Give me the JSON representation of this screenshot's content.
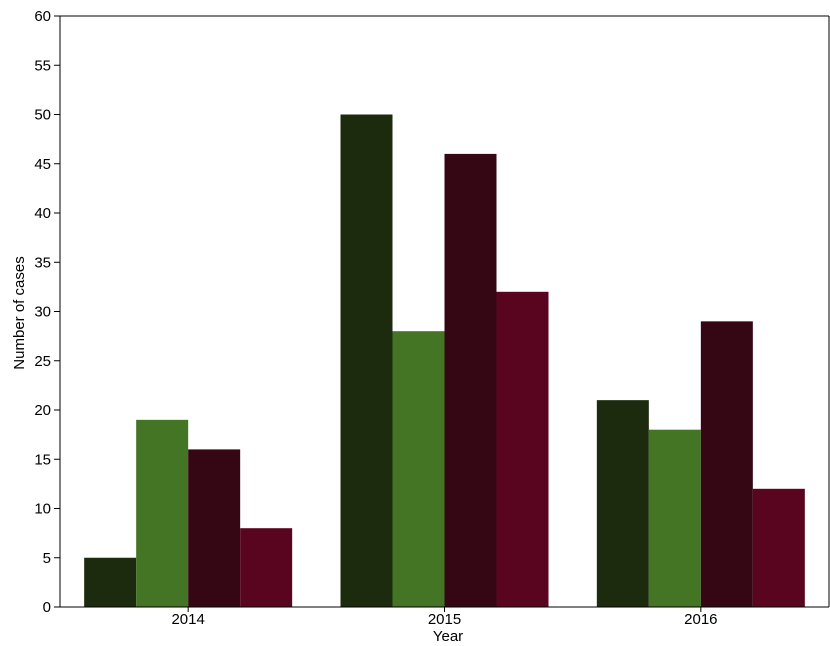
{
  "chart_data": {
    "type": "bar",
    "categories": [
      "2014",
      "2015",
      "2016"
    ],
    "series": [
      {
        "values": [
          5,
          50,
          21
        ],
        "color": "#1c2a0d"
      },
      {
        "values": [
          19,
          28,
          18
        ],
        "color": "#437524"
      },
      {
        "values": [
          16,
          46,
          29
        ],
        "color": "#350714"
      },
      {
        "values": [
          8,
          32,
          12
        ],
        "color": "#5a0520"
      }
    ],
    "title": "",
    "xlabel": "Year",
    "ylabel": "Number of cases",
    "ylim": [
      0,
      60
    ],
    "yticks": [
      "0",
      "5",
      "10",
      "15",
      "20",
      "25",
      "30",
      "35",
      "40",
      "45",
      "50",
      "55",
      "60"
    ],
    "grid": false,
    "legend": "none"
  }
}
